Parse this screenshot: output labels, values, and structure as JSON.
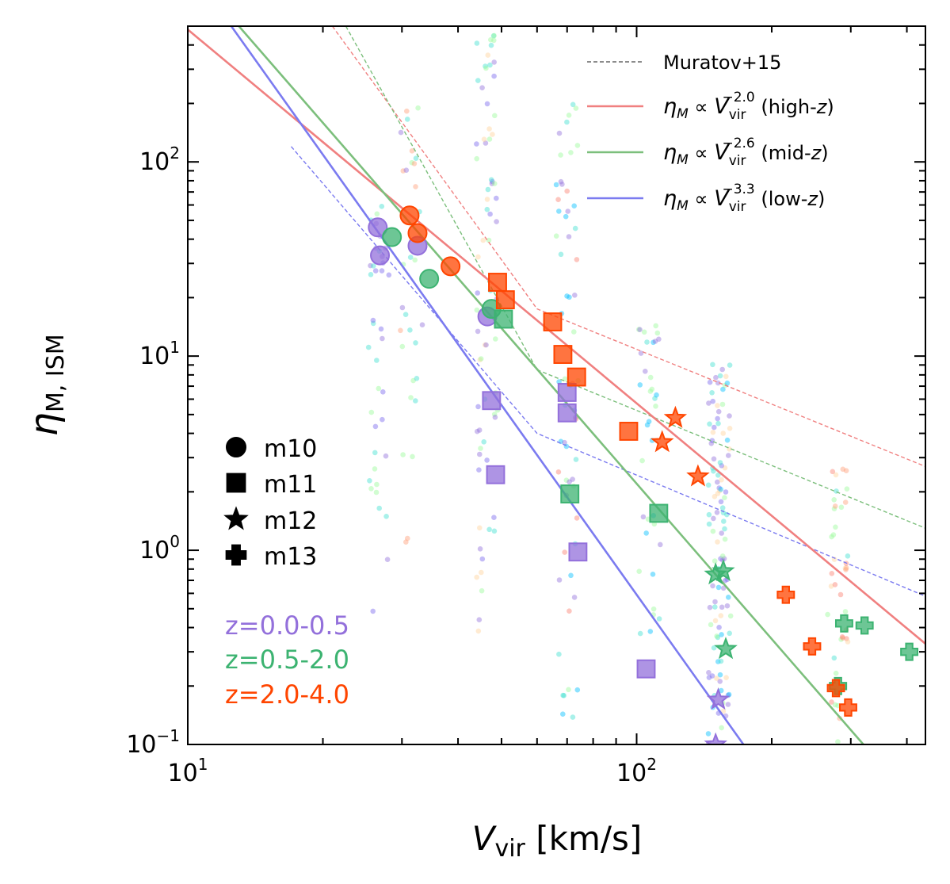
{
  "chart_data": {
    "type": "scatter",
    "x_scale": "log",
    "y_scale": "log",
    "xlim": [
      10,
      440
    ],
    "ylim": [
      0.1,
      500
    ],
    "xlabel": {
      "main": "V",
      "sub": "vir",
      "unit": " [km/s]"
    },
    "ylabel": {
      "main": "η",
      "sub": "M, ISM"
    },
    "x_ticks": [
      {
        "value": 10,
        "base": "10",
        "exp": "1"
      },
      {
        "value": 100,
        "base": "10",
        "exp": "2"
      }
    ],
    "y_ticks": [
      {
        "value": 0.1,
        "base": "10",
        "exp": "−1"
      },
      {
        "value": 1,
        "base": "10",
        "exp": "0"
      },
      {
        "value": 10,
        "base": "10",
        "exp": "1"
      },
      {
        "value": 100,
        "base": "10",
        "exp": "2"
      }
    ],
    "fit_lines": [
      {
        "name": "high-z",
        "label": "η_M ∝ V_vir^-2.0 (high-z)",
        "color": "#f08080",
        "slope": -2.0,
        "points": [
          [
            10,
            480
          ],
          [
            440,
            0.33
          ]
        ]
      },
      {
        "name": "mid-z",
        "label": "η_M ∝ V_vir^-2.6 (mid-z)",
        "color": "#7cbf7c",
        "slope": -2.6,
        "points": [
          [
            13,
            500
          ],
          [
            320,
            0.1
          ]
        ]
      },
      {
        "name": "low-z",
        "label": "η_M ∝ V_vir^-3.3 (low-z)",
        "color": "#7b7bf0",
        "slope": -3.3,
        "points": [
          [
            12.5,
            500
          ],
          [
            173,
            0.1
          ]
        ]
      }
    ],
    "muratov_lines": [
      {
        "name": "muratov-high",
        "color": "#f08080",
        "points": [
          [
            21,
            500
          ],
          [
            60,
            17.5
          ],
          [
            440,
            2.7
          ]
        ]
      },
      {
        "name": "muratov-mid",
        "color": "#7cbf7c",
        "points": [
          [
            22.5,
            500
          ],
          [
            60,
            8.5
          ],
          [
            440,
            1.3
          ]
        ]
      },
      {
        "name": "muratov-low",
        "color": "#7b7bf0",
        "points": [
          [
            17,
            120
          ],
          [
            60,
            4.0
          ],
          [
            440,
            0.58
          ]
        ]
      }
    ],
    "legend": {
      "muratov": "Muratov+15",
      "fits": [
        {
          "prefix": "η",
          "psub": "M",
          "mid": " ∝ V",
          "vsub": "vir",
          "exp": "−2.0",
          "suffix": " (high-",
          "z": "z",
          "close": ")"
        },
        {
          "prefix": "η",
          "psub": "M",
          "mid": " ∝ V",
          "vsub": "vir",
          "exp": "−2.6",
          "suffix": " (mid-",
          "z": "z",
          "close": ")"
        },
        {
          "prefix": "η",
          "psub": "M",
          "mid": " ∝ V",
          "vsub": "vir",
          "exp": "−3.3",
          "suffix": " (low-",
          "z": "z",
          "close": ")"
        }
      ]
    },
    "marker_key": [
      {
        "marker": "circle",
        "label": "m10"
      },
      {
        "marker": "square",
        "label": "m11"
      },
      {
        "marker": "star",
        "label": "m12"
      },
      {
        "marker": "plus",
        "label": "m13"
      }
    ],
    "redshift_key": [
      {
        "label": "z=0.0-0.5",
        "color": "#9370db"
      },
      {
        "label": "z=0.5-2.0",
        "color": "#3cb371"
      },
      {
        "label": "z=2.0-4.0",
        "color": "#ff4500"
      }
    ],
    "series": [
      {
        "name": "z=0.0-0.5",
        "color": "#9370db",
        "points": [
          {
            "x": 26.5,
            "y": 46,
            "m": "circle"
          },
          {
            "x": 26.8,
            "y": 33,
            "m": "circle"
          },
          {
            "x": 32.5,
            "y": 37,
            "m": "circle"
          },
          {
            "x": 46.5,
            "y": 16,
            "m": "circle"
          },
          {
            "x": 47.5,
            "y": 5.9,
            "m": "square"
          },
          {
            "x": 48.5,
            "y": 2.45,
            "m": "square"
          },
          {
            "x": 70,
            "y": 6.5,
            "m": "square"
          },
          {
            "x": 70,
            "y": 5.1,
            "m": "square"
          },
          {
            "x": 74,
            "y": 0.98,
            "m": "square"
          },
          {
            "x": 105,
            "y": 0.245,
            "m": "square"
          },
          {
            "x": 152,
            "y": 0.17,
            "m": "star"
          },
          {
            "x": 150,
            "y": 0.1,
            "m": "star"
          }
        ]
      },
      {
        "name": "z=0.5-2.0",
        "color": "#3cb371",
        "points": [
          {
            "x": 28.5,
            "y": 41,
            "m": "circle"
          },
          {
            "x": 34.5,
            "y": 25,
            "m": "circle"
          },
          {
            "x": 47.5,
            "y": 17.5,
            "m": "circle"
          },
          {
            "x": 50.5,
            "y": 15.5,
            "m": "square"
          },
          {
            "x": 71,
            "y": 1.95,
            "m": "square"
          },
          {
            "x": 112,
            "y": 1.55,
            "m": "square"
          },
          {
            "x": 150,
            "y": 0.75,
            "m": "star"
          },
          {
            "x": 156,
            "y": 0.78,
            "m": "star"
          },
          {
            "x": 158,
            "y": 0.31,
            "m": "star"
          },
          {
            "x": 290,
            "y": 0.42,
            "m": "plus"
          },
          {
            "x": 322,
            "y": 0.41,
            "m": "plus"
          },
          {
            "x": 405,
            "y": 0.3,
            "m": "plus"
          },
          {
            "x": 281,
            "y": 0.2,
            "m": "plus"
          }
        ]
      },
      {
        "name": "z=2.0-4.0",
        "color": "#ff4500",
        "points": [
          {
            "x": 31.2,
            "y": 53,
            "m": "circle"
          },
          {
            "x": 32.5,
            "y": 43,
            "m": "circle"
          },
          {
            "x": 38.5,
            "y": 29,
            "m": "circle"
          },
          {
            "x": 49,
            "y": 24,
            "m": "square"
          },
          {
            "x": 51,
            "y": 19.5,
            "m": "square"
          },
          {
            "x": 65,
            "y": 15,
            "m": "square"
          },
          {
            "x": 68.5,
            "y": 10.2,
            "m": "square"
          },
          {
            "x": 73.5,
            "y": 7.8,
            "m": "square"
          },
          {
            "x": 96,
            "y": 4.1,
            "m": "square"
          },
          {
            "x": 122,
            "y": 4.8,
            "m": "star"
          },
          {
            "x": 114,
            "y": 3.6,
            "m": "star"
          },
          {
            "x": 137,
            "y": 2.4,
            "m": "star"
          },
          {
            "x": 215,
            "y": 0.59,
            "m": "plus"
          },
          {
            "x": 246,
            "y": 0.32,
            "m": "plus"
          },
          {
            "x": 278,
            "y": 0.195,
            "m": "plus"
          },
          {
            "x": 296,
            "y": 0.155,
            "m": "plus"
          }
        ]
      }
    ],
    "scatter_clouds": [
      {
        "x": 26.5,
        "ymin": 0.45,
        "ymax": 60,
        "n": 38,
        "colors": [
          "#9370db",
          "#7b68ee",
          "#40e0d0",
          "#98fb98"
        ]
      },
      {
        "x": 31.5,
        "ymin": 1.0,
        "ymax": 450,
        "n": 30,
        "colors": [
          "#9370db",
          "#40e0d0",
          "#ffa07a",
          "#98fb98"
        ]
      },
      {
        "x": 46.5,
        "ymin": 0.35,
        "ymax": 470,
        "n": 70,
        "colors": [
          "#9370db",
          "#7b68ee",
          "#40e0d0",
          "#98fb98",
          "#ffd39b"
        ]
      },
      {
        "x": 70,
        "ymin": 0.12,
        "ymax": 200,
        "n": 60,
        "colors": [
          "#9370db",
          "#40e0d0",
          "#00bfff",
          "#fa8072",
          "#98fb98"
        ]
      },
      {
        "x": 107,
        "ymin": 0.2,
        "ymax": 18,
        "n": 35,
        "colors": [
          "#40e0d0",
          "#00bfff",
          "#9370db",
          "#98fb98"
        ]
      },
      {
        "x": 153,
        "ymin": 0.1,
        "ymax": 10,
        "n": 110,
        "colors": [
          "#9370db",
          "#7b68ee",
          "#00bfff",
          "#40e0d0",
          "#98fb98",
          "#ffd39b"
        ]
      },
      {
        "x": 280,
        "ymin": 0.1,
        "ymax": 3,
        "n": 40,
        "colors": [
          "#98fb98",
          "#ffd39b",
          "#ffa07a",
          "#40e0d0",
          "#fa8072"
        ]
      }
    ]
  }
}
